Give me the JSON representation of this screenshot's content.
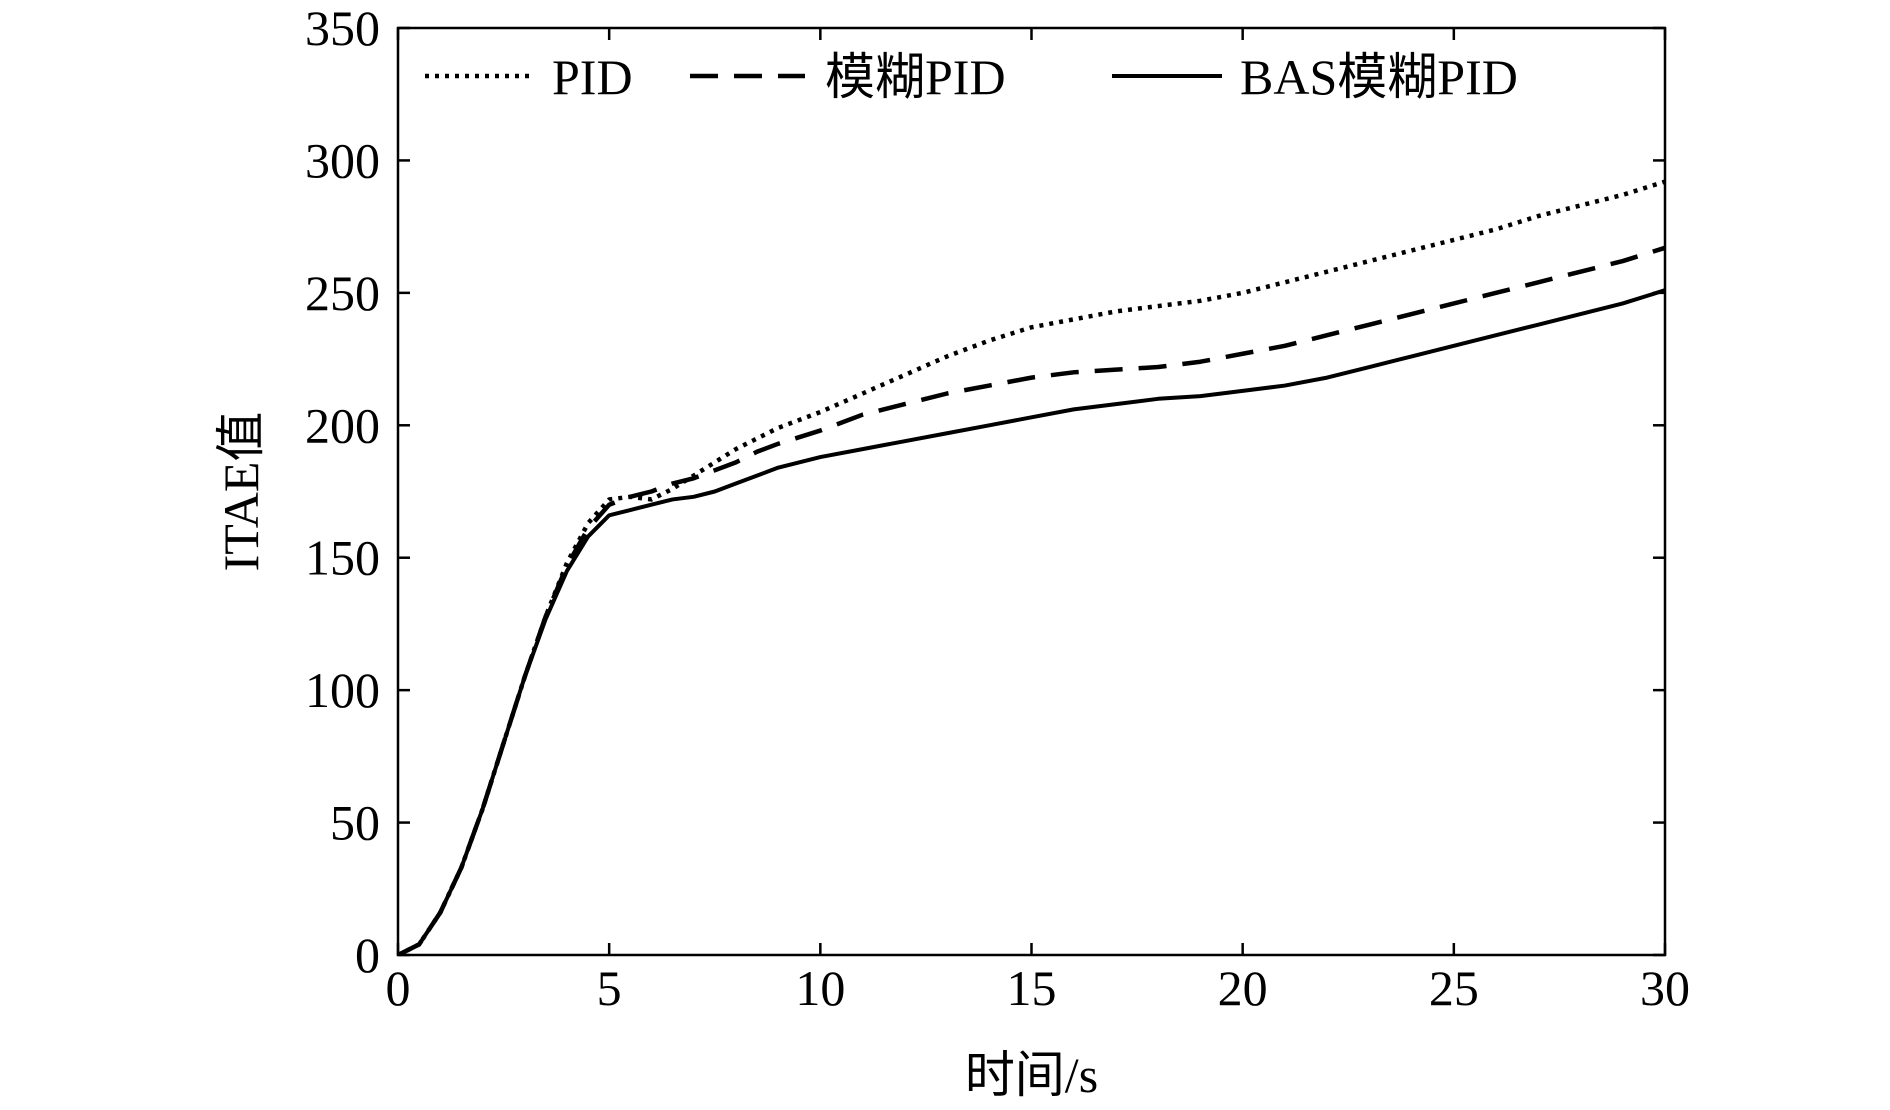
{
  "chart_data": {
    "type": "line",
    "title": "",
    "xlabel": "时间/s",
    "ylabel": "ITAE值",
    "xlim": [
      0,
      30
    ],
    "ylim": [
      0,
      350
    ],
    "xticks": [
      0,
      5,
      10,
      15,
      20,
      25,
      30
    ],
    "yticks": [
      0,
      50,
      100,
      150,
      200,
      250,
      300,
      350
    ],
    "grid": false,
    "legend_position": "top",
    "series": [
      {
        "name": "PID",
        "style": "dotted",
        "color": "#000000",
        "x": [
          0,
          0.5,
          1,
          1.5,
          2,
          2.5,
          3,
          3.5,
          4,
          4.5,
          5,
          5.5,
          6,
          6.5,
          7,
          7.5,
          8,
          8.5,
          9,
          10,
          11,
          12,
          13,
          14,
          15,
          16,
          17,
          18,
          19,
          20,
          21,
          22,
          23,
          24,
          25,
          26,
          27,
          28,
          29,
          30
        ],
        "y": [
          0,
          4,
          16,
          33,
          55,
          80,
          105,
          128,
          148,
          163,
          172,
          173,
          172,
          176,
          181,
          186,
          191,
          195,
          199,
          205,
          212,
          219,
          226,
          232,
          237,
          240,
          243,
          245,
          247,
          250,
          254,
          258,
          262,
          266,
          270,
          274,
          279,
          283,
          287,
          292
        ]
      },
      {
        "name": "模糊PID",
        "style": "dashed",
        "color": "#000000",
        "x": [
          0,
          0.5,
          1,
          1.5,
          2,
          2.5,
          3,
          3.5,
          4,
          4.5,
          5,
          5.5,
          6,
          6.5,
          7,
          7.5,
          8,
          8.5,
          9,
          10,
          11,
          12,
          13,
          14,
          15,
          16,
          17,
          18,
          19,
          20,
          21,
          22,
          23,
          24,
          25,
          26,
          27,
          28,
          29,
          30
        ],
        "y": [
          0,
          4,
          16,
          33,
          55,
          80,
          105,
          128,
          147,
          161,
          170,
          173,
          175,
          178,
          180,
          183,
          186,
          190,
          193,
          198,
          204,
          208,
          212,
          215,
          218,
          220,
          221,
          222,
          224,
          227,
          230,
          234,
          238,
          242,
          246,
          250,
          254,
          258,
          262,
          267
        ]
      },
      {
        "name": "BAS模糊PID",
        "style": "solid",
        "color": "#000000",
        "x": [
          0,
          0.5,
          1,
          1.5,
          2,
          2.5,
          3,
          3.5,
          4,
          4.5,
          5,
          5.5,
          6,
          6.5,
          7,
          7.5,
          8,
          8.5,
          9,
          10,
          11,
          12,
          13,
          14,
          15,
          16,
          17,
          18,
          19,
          20,
          21,
          22,
          23,
          24,
          25,
          26,
          27,
          28,
          29,
          30
        ],
        "y": [
          0,
          4,
          16,
          33,
          55,
          80,
          105,
          127,
          145,
          158,
          166,
          168,
          170,
          172,
          173,
          175,
          178,
          181,
          184,
          188,
          191,
          194,
          197,
          200,
          203,
          206,
          208,
          210,
          211,
          213,
          215,
          218,
          222,
          226,
          230,
          234,
          238,
          242,
          246,
          251
        ]
      }
    ]
  }
}
